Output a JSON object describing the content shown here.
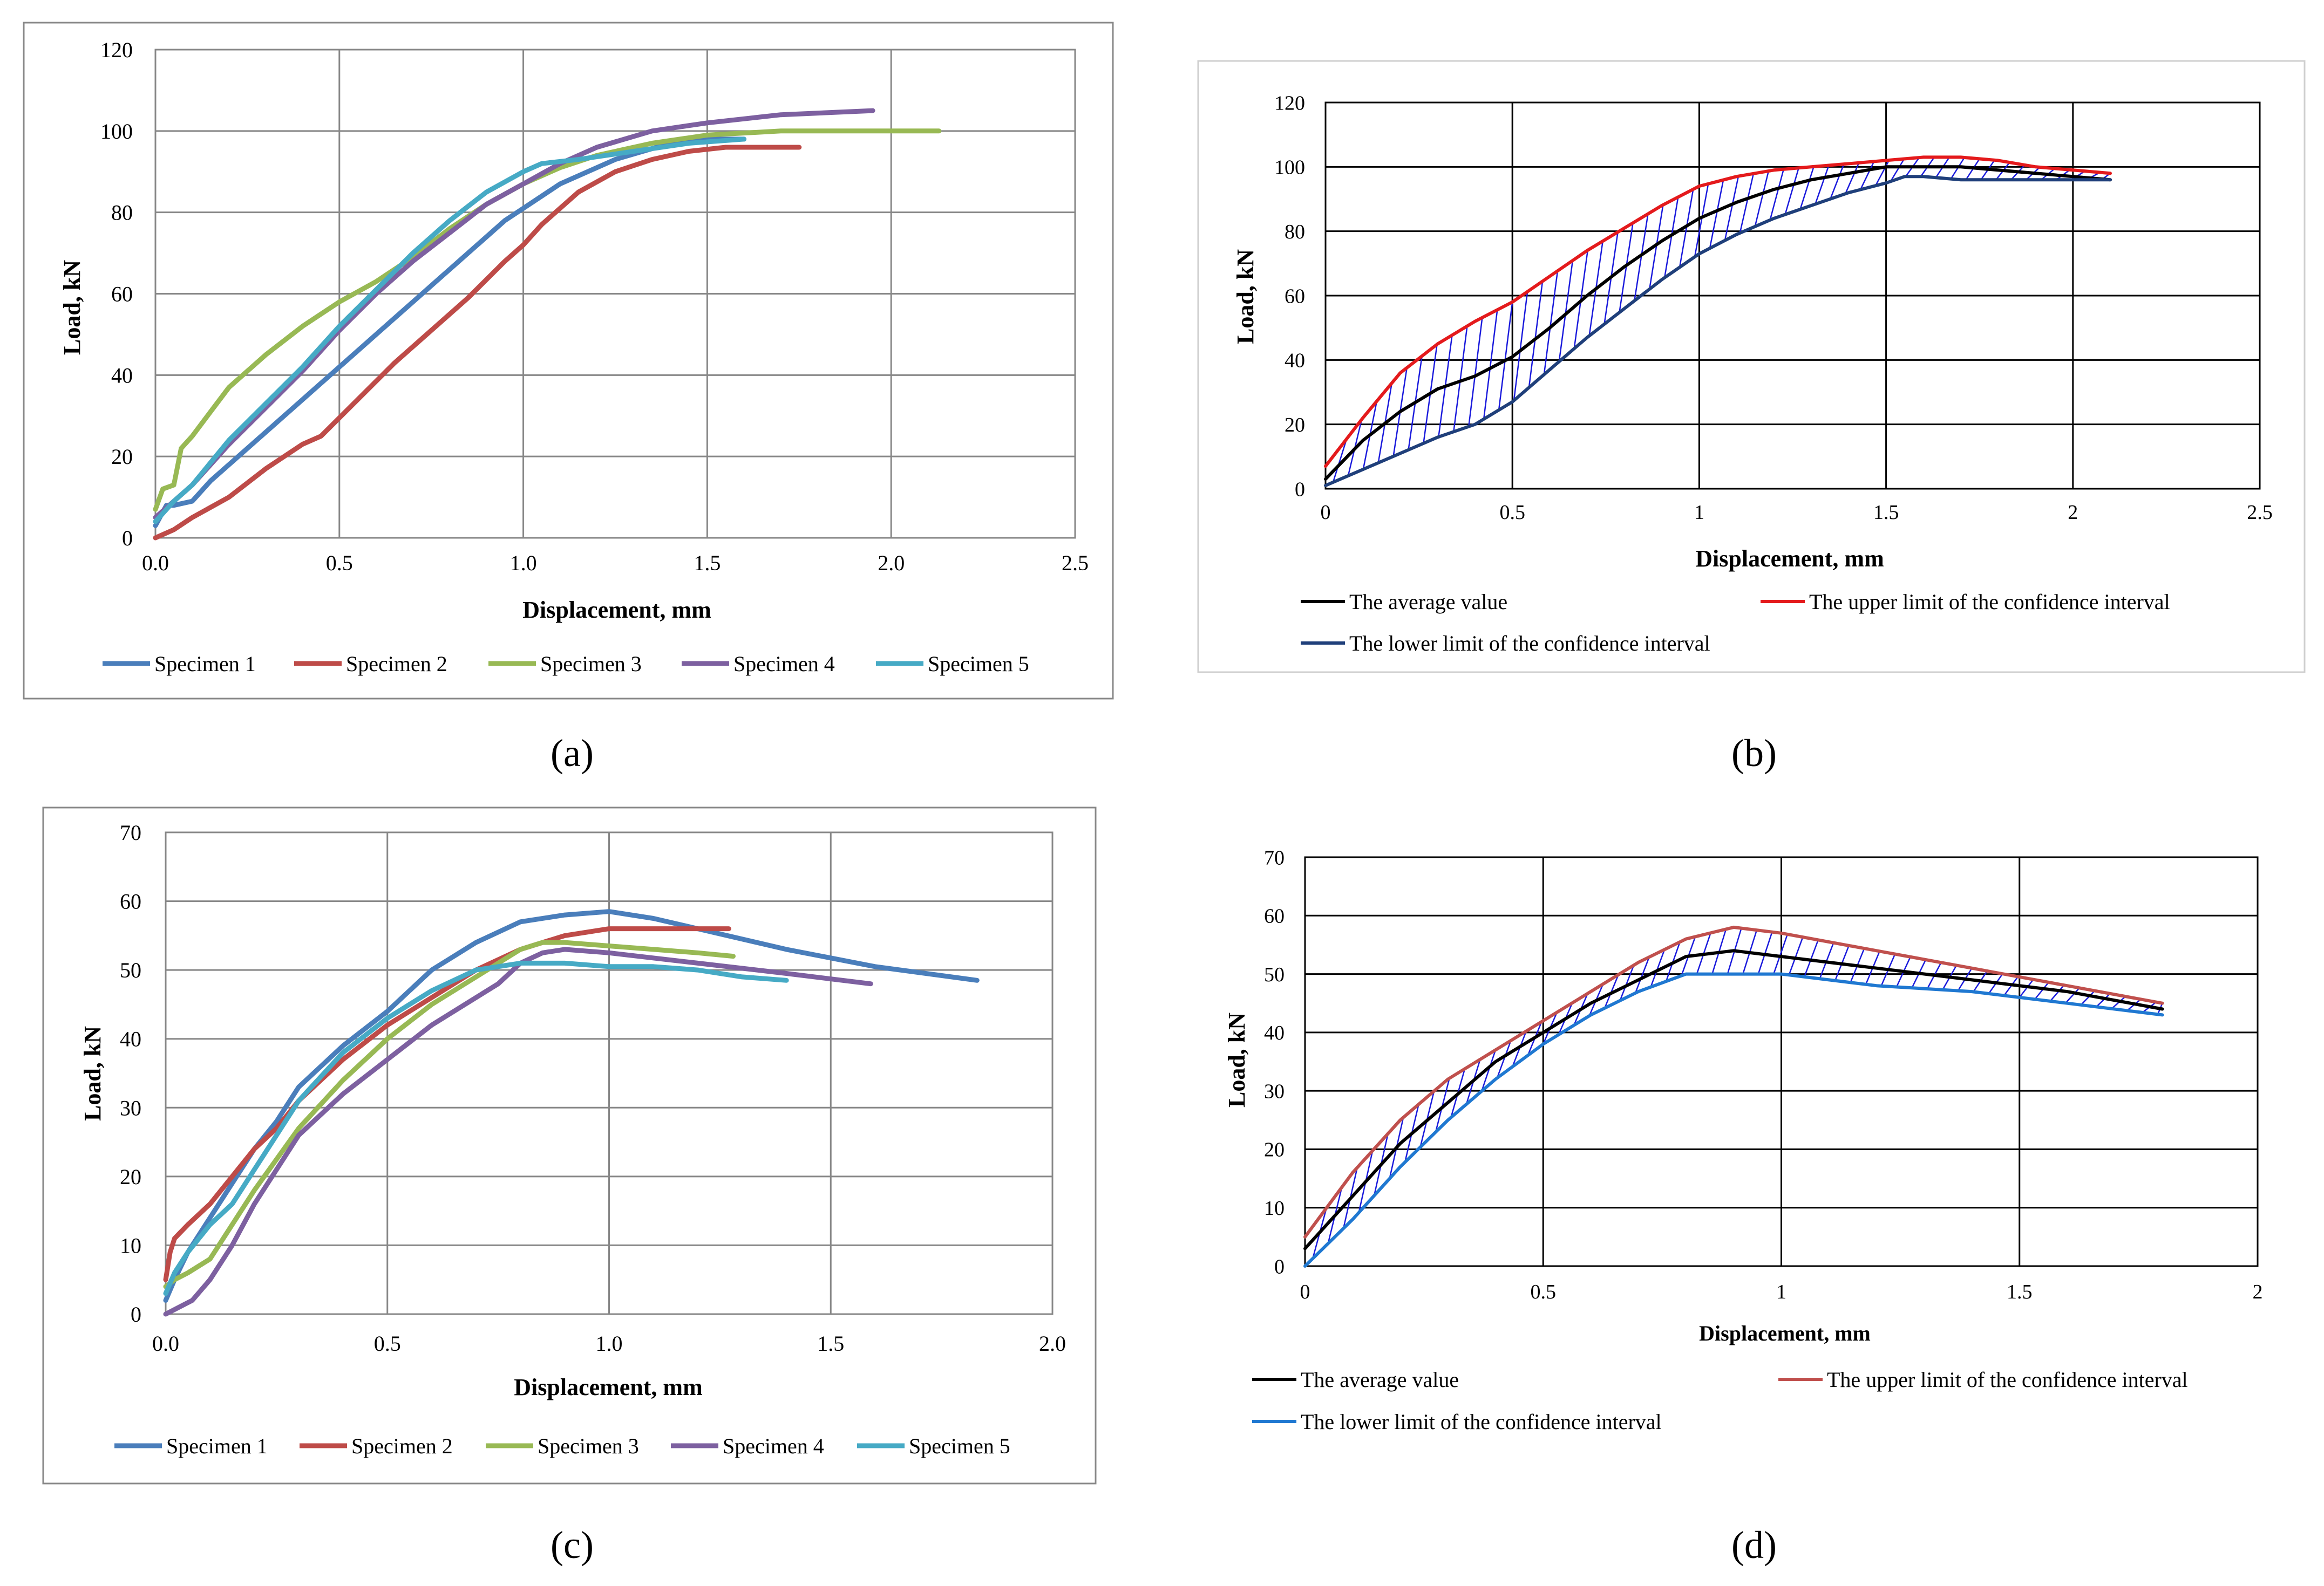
{
  "colors": {
    "specimen1": "#4a7ebb",
    "specimen2": "#be4b48",
    "specimen3": "#98b954",
    "specimen4": "#7d60a0",
    "specimen5": "#46aac5",
    "average": "#000000",
    "upper_b": "#e41a1c",
    "lower_b": "#1f3f7a",
    "hatch": "#1a1adc",
    "upper_d": "#c0504d",
    "lower_d": "#1f78d1",
    "grid_ab": "#878787",
    "grid_bd": "#000000"
  },
  "chart_data": [
    {
      "id": "a",
      "type": "line",
      "panel_label": "(a)",
      "xlabel": "Displacement, mm",
      "ylabel": "Load, kN",
      "xlim": [
        0,
        2.5
      ],
      "ylim": [
        0,
        120
      ],
      "xticks": [
        "0.0",
        "0.5",
        "1.0",
        "1.5",
        "2.0",
        "2.5"
      ],
      "yticks": [
        "0",
        "20",
        "40",
        "60",
        "80",
        "100",
        "120"
      ],
      "legend": "bottom",
      "series": [
        {
          "name": "Specimen 1",
          "color_key": "specimen1",
          "x": [
            0,
            0.03,
            0.05,
            0.1,
            0.15,
            0.25,
            0.35,
            0.5,
            0.65,
            0.8,
            0.95,
            1.1,
            1.25,
            1.4,
            1.5,
            1.6
          ],
          "y": [
            3,
            8,
            8,
            9,
            14,
            22,
            30,
            42,
            54,
            66,
            78,
            87,
            93,
            97,
            98,
            98
          ]
        },
        {
          "name": "Specimen 2",
          "color_key": "specimen2",
          "x": [
            0,
            0.05,
            0.1,
            0.2,
            0.3,
            0.4,
            0.45,
            0.55,
            0.65,
            0.75,
            0.85,
            0.95,
            1.0,
            1.05,
            1.15,
            1.25,
            1.35,
            1.45,
            1.55,
            1.65,
            1.75
          ],
          "y": [
            0,
            2,
            5,
            10,
            17,
            23,
            25,
            34,
            43,
            51,
            59,
            68,
            72,
            77,
            85,
            90,
            93,
            95,
            96,
            96,
            96
          ]
        },
        {
          "name": "Specimen 3",
          "color_key": "specimen3",
          "x": [
            0,
            0.02,
            0.05,
            0.07,
            0.1,
            0.15,
            0.2,
            0.3,
            0.4,
            0.5,
            0.6,
            0.7,
            0.8,
            0.9,
            1.0,
            1.1,
            1.2,
            1.35,
            1.5,
            1.7,
            1.9,
            2.13
          ],
          "y": [
            7,
            12,
            13,
            22,
            25,
            31,
            37,
            45,
            52,
            58,
            63,
            69,
            76,
            82,
            87,
            91,
            94,
            97,
            99,
            100,
            100,
            100
          ]
        },
        {
          "name": "Specimen 4",
          "color_key": "specimen4",
          "x": [
            0,
            0.05,
            0.1,
            0.2,
            0.3,
            0.4,
            0.5,
            0.6,
            0.7,
            0.8,
            0.9,
            1.0,
            1.1,
            1.2,
            1.35,
            1.5,
            1.7,
            1.95
          ],
          "y": [
            5,
            9,
            13,
            23,
            32,
            41,
            51,
            60,
            68,
            75,
            82,
            87,
            92,
            96,
            100,
            102,
            104,
            105
          ]
        },
        {
          "name": "Specimen 5",
          "color_key": "specimen5",
          "x": [
            0,
            0.05,
            0.1,
            0.2,
            0.3,
            0.4,
            0.5,
            0.6,
            0.7,
            0.8,
            0.9,
            1.0,
            1.05,
            1.15,
            1.3,
            1.45,
            1.6
          ],
          "y": [
            4,
            9,
            13,
            24,
            33,
            42,
            52,
            61,
            70,
            78,
            85,
            90,
            92,
            93,
            95,
            97,
            98
          ]
        }
      ]
    },
    {
      "id": "b",
      "type": "line",
      "panel_label": "(b)",
      "xlabel": "Displacement, mm",
      "ylabel": "Load, kN",
      "xlim": [
        0,
        2.5
      ],
      "ylim": [
        0,
        120
      ],
      "xticks": [
        "0",
        "0.5",
        "1",
        "1.5",
        "2",
        "2.5"
      ],
      "yticks": [
        "0",
        "20",
        "40",
        "60",
        "80",
        "100",
        "120"
      ],
      "legend": "bottom",
      "hatched_between": [
        "The upper limit of the confidence interval",
        "The lower limit of the confidence interval"
      ],
      "series": [
        {
          "name": "The average value",
          "color_key": "average",
          "x": [
            0,
            0.1,
            0.2,
            0.3,
            0.4,
            0.5,
            0.6,
            0.7,
            0.8,
            0.9,
            1.0,
            1.1,
            1.2,
            1.3,
            1.4,
            1.5,
            1.6,
            1.7,
            1.8,
            1.9,
            2.0,
            2.1
          ],
          "y": [
            3,
            15,
            24,
            31,
            35,
            41,
            50,
            60,
            69,
            77,
            84,
            89,
            93,
            96,
            98,
            100,
            100,
            100,
            99,
            98,
            97,
            96
          ]
        },
        {
          "name": "The upper limit of the confidence interval",
          "color_key": "upper_b",
          "x": [
            0,
            0.1,
            0.2,
            0.3,
            0.4,
            0.5,
            0.6,
            0.7,
            0.8,
            0.9,
            1.0,
            1.1,
            1.2,
            1.3,
            1.4,
            1.5,
            1.6,
            1.7,
            1.8,
            1.9,
            2.0,
            2.1
          ],
          "y": [
            7,
            22,
            36,
            45,
            52,
            58,
            66,
            74,
            81,
            88,
            94,
            97,
            99,
            100,
            101,
            102,
            103,
            103,
            102,
            100,
            99,
            98
          ]
        },
        {
          "name": "The lower limit of the confidence interval",
          "color_key": "lower_b",
          "x": [
            0,
            0.1,
            0.2,
            0.3,
            0.4,
            0.5,
            0.6,
            0.7,
            0.8,
            0.9,
            1.0,
            1.1,
            1.2,
            1.3,
            1.4,
            1.5,
            1.55,
            1.6,
            1.7,
            1.8,
            1.9,
            2.0,
            2.1
          ],
          "y": [
            1,
            6,
            11,
            16,
            20,
            27,
            37,
            47,
            56,
            65,
            73,
            79,
            84,
            88,
            92,
            95,
            97,
            97,
            96,
            96,
            96,
            96,
            96
          ]
        }
      ]
    },
    {
      "id": "c",
      "type": "line",
      "panel_label": "(c)",
      "xlabel": "Displacement, mm",
      "ylabel": "Load, kN",
      "xlim": [
        0,
        2.0
      ],
      "ylim": [
        0,
        70
      ],
      "xticks": [
        "0.0",
        "0.5",
        "1.0",
        "1.5",
        "2.0"
      ],
      "yticks": [
        "0",
        "10",
        "20",
        "30",
        "40",
        "50",
        "60",
        "70"
      ],
      "legend": "bottom",
      "series": [
        {
          "name": "Specimen 1",
          "color_key": "specimen1",
          "x": [
            0,
            0.02,
            0.05,
            0.1,
            0.15,
            0.2,
            0.25,
            0.3,
            0.4,
            0.5,
            0.6,
            0.7,
            0.8,
            0.9,
            1.0,
            1.1,
            1.2,
            1.4,
            1.6,
            1.83
          ],
          "y": [
            2,
            5,
            9,
            14,
            19,
            24,
            28,
            33,
            39,
            44,
            50,
            54,
            57,
            58,
            58.5,
            57.5,
            56,
            53,
            50.5,
            48.5
          ]
        },
        {
          "name": "Specimen 2",
          "color_key": "specimen2",
          "x": [
            0,
            0.01,
            0.02,
            0.05,
            0.1,
            0.15,
            0.2,
            0.25,
            0.3,
            0.4,
            0.5,
            0.6,
            0.7,
            0.8,
            0.9,
            1.0,
            1.1,
            1.2,
            1.27
          ],
          "y": [
            5,
            9,
            11,
            13,
            16,
            20,
            24,
            27,
            31,
            37,
            42,
            46,
            50,
            53,
            55,
            56,
            56,
            56,
            56
          ]
        },
        {
          "name": "Specimen 3",
          "color_key": "specimen3",
          "x": [
            0,
            0.02,
            0.05,
            0.1,
            0.15,
            0.2,
            0.3,
            0.4,
            0.5,
            0.6,
            0.7,
            0.8,
            0.85,
            0.9,
            1.0,
            1.1,
            1.2,
            1.28
          ],
          "y": [
            4,
            5,
            6,
            8,
            13,
            18,
            27,
            34,
            40,
            45,
            49,
            53,
            54,
            54,
            53.5,
            53,
            52.5,
            52
          ]
        },
        {
          "name": "Specimen 4",
          "color_key": "specimen4",
          "x": [
            0,
            0.03,
            0.06,
            0.1,
            0.15,
            0.2,
            0.3,
            0.4,
            0.5,
            0.6,
            0.7,
            0.75,
            0.8,
            0.85,
            0.9,
            1.0,
            1.2,
            1.4,
            1.59
          ],
          "y": [
            0,
            1,
            2,
            5,
            10,
            16,
            26,
            32,
            37,
            42,
            46,
            48,
            51,
            52.5,
            53,
            52.5,
            51,
            49.5,
            48
          ]
        },
        {
          "name": "Specimen 5",
          "color_key": "specimen5",
          "x": [
            0,
            0.02,
            0.05,
            0.1,
            0.15,
            0.2,
            0.25,
            0.3,
            0.4,
            0.5,
            0.6,
            0.7,
            0.8,
            0.9,
            1.0,
            1.1,
            1.2,
            1.3,
            1.4
          ],
          "y": [
            3,
            6,
            9,
            13,
            16,
            21,
            26,
            31,
            38,
            43,
            47,
            50,
            51,
            51,
            50.5,
            50.5,
            50,
            49,
            48.5
          ]
        }
      ]
    },
    {
      "id": "d",
      "type": "line",
      "panel_label": "(d)",
      "xlabel": "Displacement, mm",
      "ylabel": "Load, kN",
      "xlim": [
        0,
        2
      ],
      "ylim": [
        0,
        70
      ],
      "xticks": [
        "0",
        "0.5",
        "1",
        "1.5",
        "2"
      ],
      "yticks": [
        "0",
        "10",
        "20",
        "30",
        "40",
        "50",
        "60",
        "70"
      ],
      "legend": "bottom",
      "hatched_between": [
        "The upper limit of the confidence interval",
        "The lower limit of the confidence interval"
      ],
      "series": [
        {
          "name": "The average value",
          "color_key": "average",
          "x": [
            0,
            0.1,
            0.2,
            0.3,
            0.4,
            0.5,
            0.6,
            0.7,
            0.8,
            0.9,
            1.0,
            1.2,
            1.4,
            1.6,
            1.8
          ],
          "y": [
            3,
            12,
            21,
            28,
            35,
            40,
            45,
            49,
            53,
            54,
            53,
            51,
            49,
            47,
            44
          ]
        },
        {
          "name": "The upper limit of the confidence interval",
          "color_key": "upper_d",
          "x": [
            0,
            0.1,
            0.2,
            0.3,
            0.4,
            0.5,
            0.6,
            0.7,
            0.8,
            0.9,
            1.0,
            1.2,
            1.4,
            1.6,
            1.8
          ],
          "y": [
            5,
            16,
            25,
            32,
            37,
            42,
            47,
            52,
            56,
            58,
            57,
            54,
            51,
            48,
            45
          ]
        },
        {
          "name": "The lower limit of the confidence interval",
          "color_key": "lower_d",
          "x": [
            0,
            0.1,
            0.2,
            0.3,
            0.4,
            0.5,
            0.6,
            0.7,
            0.8,
            0.9,
            1.0,
            1.2,
            1.4,
            1.6,
            1.8
          ],
          "y": [
            0,
            8,
            17,
            25,
            32,
            38,
            43,
            47,
            50,
            50,
            50,
            48,
            47,
            45,
            43
          ]
        }
      ]
    }
  ]
}
